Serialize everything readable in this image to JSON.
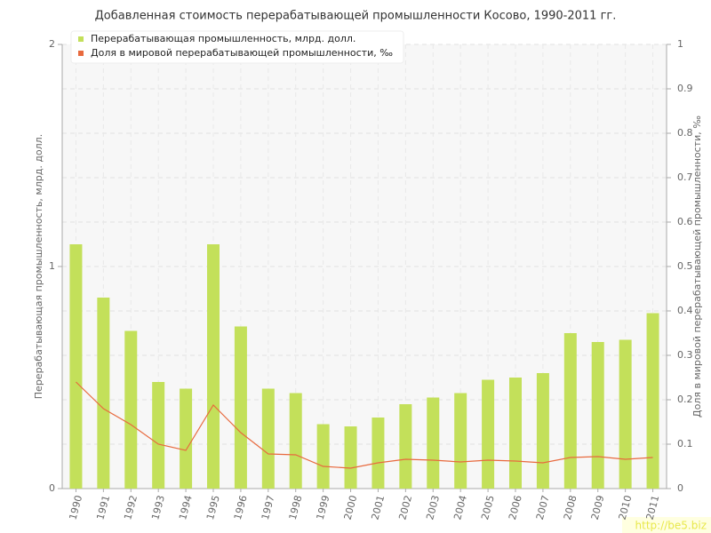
{
  "chart_data": {
    "type": "bar",
    "title": "Добавленная стоимость перерабатывающей промышленности Косово, 1990-2011 гг.",
    "y_label": "Перерабатывающая промышленность, млрд. долл.",
    "y2_label": "Доля в мировой перерабатывающей промышленности, ‰",
    "watermark": "http://be5.biz",
    "categories": [
      "1990",
      "1991",
      "1992",
      "1993",
      "1994",
      "1995",
      "1996",
      "1997",
      "1998",
      "1999",
      "2000",
      "2001",
      "2002",
      "2003",
      "2004",
      "2005",
      "2006",
      "2007",
      "2008",
      "2009",
      "2010",
      "2011"
    ],
    "series": [
      {
        "name": "Перерабатывающая промышленность, млрд. долл.",
        "type": "bar",
        "color": "#c3e05a",
        "values": [
          1.1,
          0.86,
          0.71,
          0.48,
          0.45,
          1.1,
          0.73,
          0.45,
          0.43,
          0.29,
          0.28,
          0.32,
          0.38,
          0.41,
          0.43,
          0.49,
          0.5,
          0.52,
          0.7,
          0.66,
          0.67,
          0.79
        ]
      },
      {
        "name": "Доля в мировой перерабатывающей промышленности, ‰",
        "type": "line",
        "axis": "y2",
        "color": "#e86a3e",
        "values": [
          0.24,
          0.18,
          0.144,
          0.1,
          0.086,
          0.188,
          0.126,
          0.078,
          0.076,
          0.05,
          0.046,
          0.058,
          0.066,
          0.064,
          0.06,
          0.064,
          0.062,
          0.058,
          0.07,
          0.072,
          0.066,
          0.07
        ]
      }
    ],
    "ylim": [
      0,
      2
    ],
    "yticks": [
      0,
      1,
      2
    ],
    "y2lim": [
      0,
      1
    ],
    "y2ticks": [
      0,
      0.1,
      0.2,
      0.3,
      0.4,
      0.5,
      0.6,
      0.7,
      0.8,
      0.9,
      1
    ],
    "grid": true
  }
}
